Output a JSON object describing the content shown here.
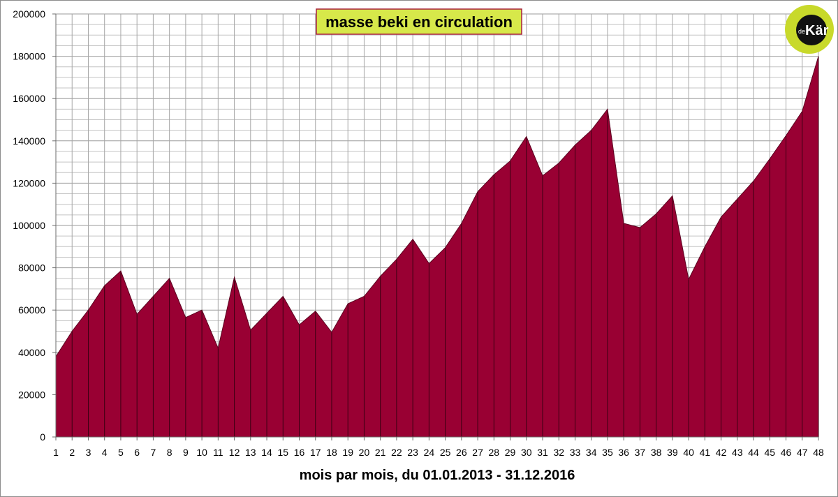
{
  "chart_data": {
    "type": "area",
    "title": "masse beki en circulation",
    "xlabel": "mois par mois, du 01.01.2013 - 31.12.2016",
    "ylabel": "",
    "x": [
      1,
      2,
      3,
      4,
      5,
      6,
      7,
      8,
      9,
      10,
      11,
      12,
      13,
      14,
      15,
      16,
      17,
      18,
      19,
      20,
      21,
      22,
      23,
      24,
      25,
      26,
      27,
      28,
      29,
      30,
      31,
      32,
      33,
      34,
      35,
      36,
      37,
      38,
      39,
      40,
      41,
      42,
      43,
      44,
      45,
      46,
      47,
      48
    ],
    "ylim": [
      0,
      200000
    ],
    "yticks": [
      0,
      20000,
      40000,
      60000,
      80000,
      100000,
      120000,
      140000,
      160000,
      180000,
      200000
    ],
    "grid": true,
    "series": [
      {
        "values": [
          38000,
          50000,
          60000,
          71500,
          78500,
          58000,
          66500,
          75000,
          56500,
          60000,
          42000,
          75500,
          50500,
          58500,
          66500,
          53000,
          59500,
          49500,
          63000,
          66500,
          76000,
          84000,
          93500,
          82000,
          89500,
          101000,
          116000,
          124000,
          130500,
          142000,
          123500,
          129500,
          138000,
          145000,
          155000,
          101000,
          99000,
          105500,
          114000,
          74500,
          90000,
          104000,
          112500,
          121000,
          131500,
          142500,
          154000,
          180000
        ],
        "color": "#990033"
      }
    ],
    "logo": {
      "prefix": "de",
      "name": "Kär",
      "bg_color": "#c8d92b",
      "fg_color": "#111111"
    },
    "title_box_color": "#d7e84a",
    "title_border_color": "#a8203c"
  }
}
